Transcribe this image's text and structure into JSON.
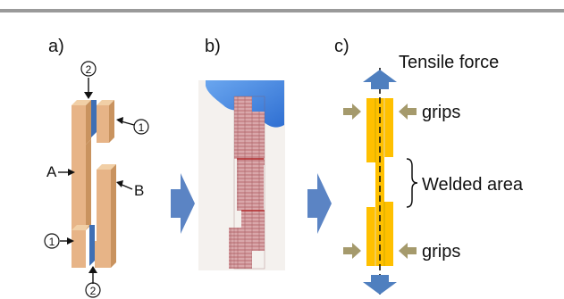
{
  "panels": {
    "a": {
      "label": "a)",
      "part_a": "A",
      "part_b": "B",
      "marker_1": "①",
      "marker_2": "②"
    },
    "b": {
      "label": "b)"
    },
    "c": {
      "label": "c)",
      "tensile": "Tensile force",
      "grips_top": "grips",
      "welded": "Welded area",
      "grips_bottom": "grips"
    }
  },
  "colors": {
    "top_rule": "#9a9a9a",
    "wood_face": "#e7b487",
    "wood_side": "#c9935f",
    "wood_top": "#f1cfa6",
    "insert": "#3f6fb4",
    "flow_arrow": "#5b84c4",
    "specimen": "#ffc000",
    "force_arrow": "#4f7fbf",
    "grip_arrow": "#a59a6c"
  }
}
